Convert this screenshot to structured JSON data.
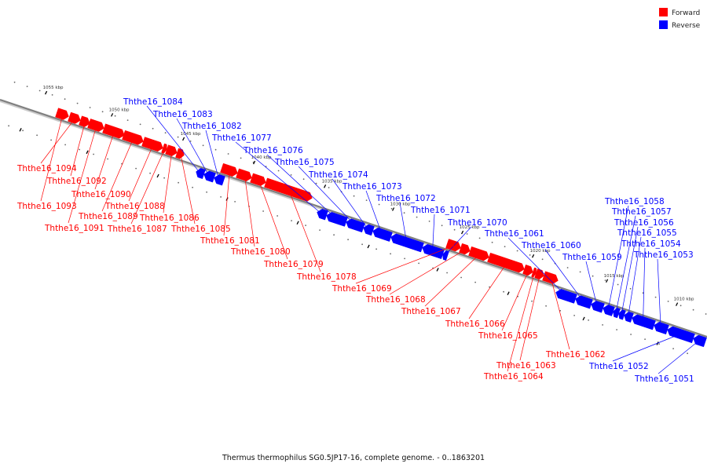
{
  "caption": "Thermus thermophilus SG0.5JP17-16, complete genome. - 0..1863201",
  "legend": [
    {
      "label": "Forward",
      "color": "#ff0000"
    },
    {
      "label": "Reverse",
      "color": "#0000ff"
    }
  ],
  "colors": {
    "forward": "#ff0000",
    "reverse": "#0000ff",
    "backbone": "#808080"
  },
  "ticks": [
    "1055 kbp",
    "1050 kbp",
    "1045 kbp",
    "1040 kbp",
    "1035 kbp",
    "1030 kbp",
    "1025 kbp",
    "1020 kbp",
    "1015 kbp",
    "1010 kbp"
  ],
  "genes": [
    {
      "name": "Ththe16_1094",
      "strand": "forward"
    },
    {
      "name": "Ththe16_1093",
      "strand": "forward"
    },
    {
      "name": "Ththe16_1092",
      "strand": "forward"
    },
    {
      "name": "Ththe16_1091",
      "strand": "forward"
    },
    {
      "name": "Ththe16_1090",
      "strand": "forward"
    },
    {
      "name": "Ththe16_1089",
      "strand": "forward"
    },
    {
      "name": "Ththe16_1088",
      "strand": "forward"
    },
    {
      "name": "Ththe16_1087",
      "strand": "forward"
    },
    {
      "name": "Ththe16_1086",
      "strand": "forward"
    },
    {
      "name": "Ththe16_1085",
      "strand": "forward"
    },
    {
      "name": "Ththe16_1084",
      "strand": "reverse"
    },
    {
      "name": "Ththe16_1083",
      "strand": "reverse"
    },
    {
      "name": "Ththe16_1082",
      "strand": "reverse"
    },
    {
      "name": "Ththe16_1081",
      "strand": "forward"
    },
    {
      "name": "Ththe16_1080",
      "strand": "forward"
    },
    {
      "name": "Ththe16_1079",
      "strand": "forward"
    },
    {
      "name": "Ththe16_1078",
      "strand": "forward"
    },
    {
      "name": "Ththe16_1077",
      "strand": "reverse"
    },
    {
      "name": "Ththe16_1076",
      "strand": "reverse"
    },
    {
      "name": "Ththe16_1075",
      "strand": "reverse"
    },
    {
      "name": "Ththe16_1074",
      "strand": "reverse"
    },
    {
      "name": "Ththe16_1073",
      "strand": "reverse"
    },
    {
      "name": "Ththe16_1072",
      "strand": "reverse"
    },
    {
      "name": "Ththe16_1071",
      "strand": "reverse"
    },
    {
      "name": "Ththe16_1070",
      "strand": "reverse"
    },
    {
      "name": "Ththe16_1069",
      "strand": "forward"
    },
    {
      "name": "Ththe16_1068",
      "strand": "forward"
    },
    {
      "name": "Ththe16_1067",
      "strand": "forward"
    },
    {
      "name": "Ththe16_1066",
      "strand": "forward"
    },
    {
      "name": "Ththe16_1065",
      "strand": "forward"
    },
    {
      "name": "Ththe16_1064",
      "strand": "forward"
    },
    {
      "name": "Ththe16_1063",
      "strand": "forward"
    },
    {
      "name": "Ththe16_1062",
      "strand": "forward"
    },
    {
      "name": "Ththe16_1061",
      "strand": "reverse"
    },
    {
      "name": "Ththe16_1060",
      "strand": "reverse"
    },
    {
      "name": "Ththe16_1059",
      "strand": "reverse"
    },
    {
      "name": "Ththe16_1058",
      "strand": "reverse"
    },
    {
      "name": "Ththe16_1057",
      "strand": "reverse"
    },
    {
      "name": "Ththe16_1056",
      "strand": "reverse"
    },
    {
      "name": "Ththe16_1055",
      "strand": "reverse"
    },
    {
      "name": "Ththe16_1054",
      "strand": "reverse"
    },
    {
      "name": "Ththe16_1053",
      "strand": "reverse"
    },
    {
      "name": "Ththe16_1052",
      "strand": "reverse"
    },
    {
      "name": "Ththe16_1051",
      "strand": "reverse"
    }
  ]
}
